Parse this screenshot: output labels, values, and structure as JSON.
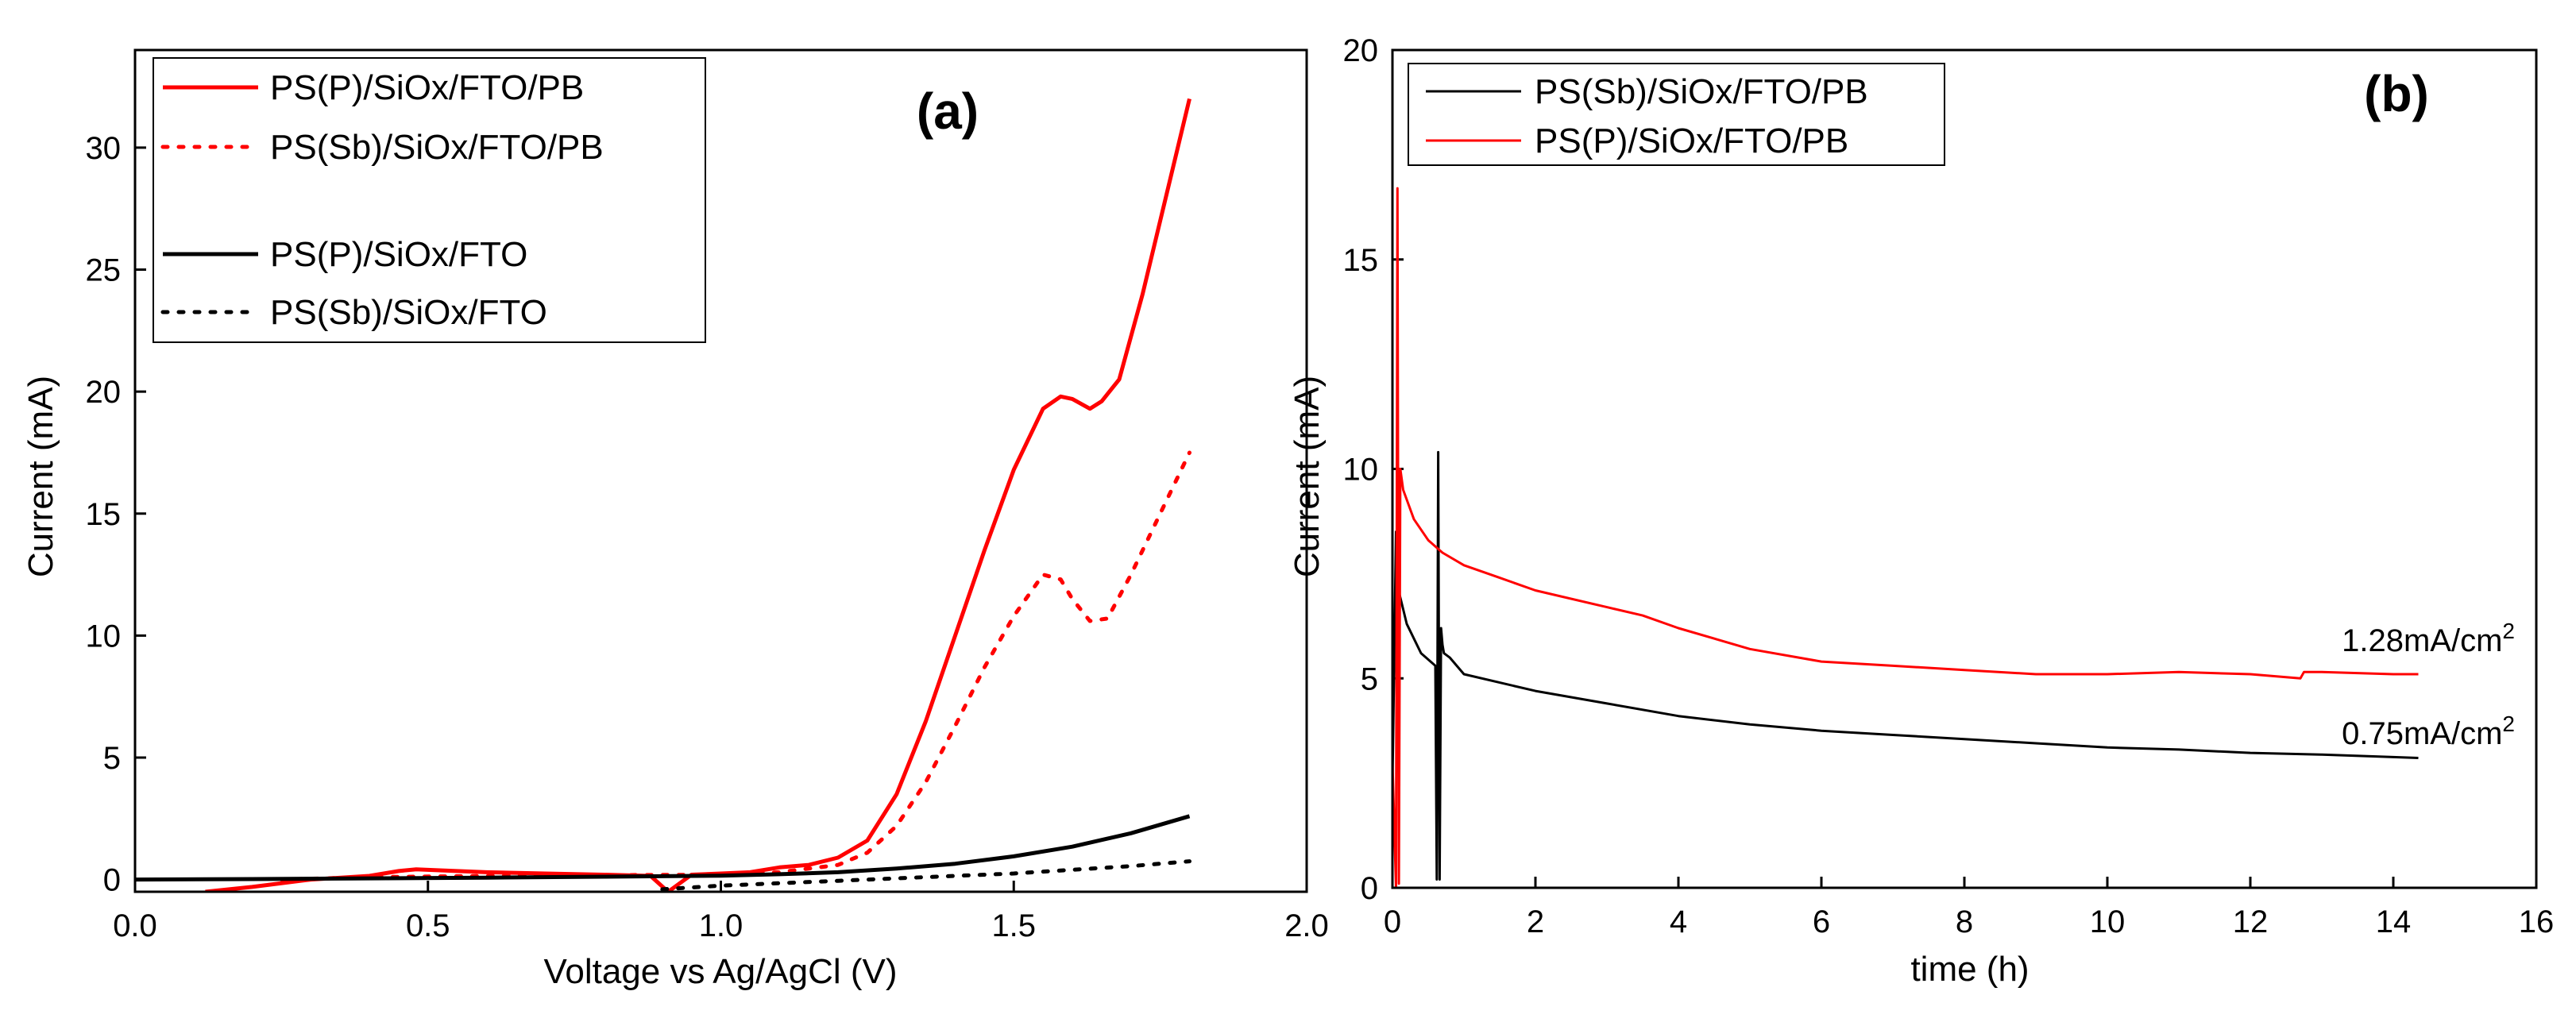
{
  "chart_data": [
    {
      "panel": "(a)",
      "type": "line",
      "title": "",
      "xlabel": "Voltage vs Ag/AgCl (V)",
      "ylabel": "Current (mA)",
      "xlim": [
        0.0,
        2.0
      ],
      "ylim": [
        -0.5,
        34
      ],
      "xticks": [
        0.0,
        0.5,
        1.0,
        1.5,
        2.0
      ],
      "xtick_labels": [
        "0.0",
        "0.5",
        "1.0",
        "1.5",
        "2.0"
      ],
      "yticks": [
        0,
        5,
        10,
        15,
        20,
        25,
        30
      ],
      "ytick_labels": [
        "0",
        "5",
        "10",
        "15",
        "20",
        "25",
        "30"
      ],
      "legend_position": "top-left",
      "series": [
        {
          "name": "PS(P)/SiOx/FTO/PB",
          "color": "#ff0000",
          "dash": "solid",
          "x": [
            0.12,
            0.2,
            0.3,
            0.4,
            0.45,
            0.48,
            0.52,
            0.6,
            0.7,
            0.8,
            0.88,
            0.91,
            0.95,
            1.0,
            1.05,
            1.1,
            1.15,
            1.2,
            1.25,
            1.3,
            1.35,
            1.4,
            1.45,
            1.5,
            1.55,
            1.58,
            1.6,
            1.63,
            1.65,
            1.68,
            1.72,
            1.75,
            1.8
          ],
          "y": [
            -0.5,
            -0.3,
            0.0,
            0.15,
            0.35,
            0.42,
            0.38,
            0.3,
            0.25,
            0.2,
            0.15,
            -0.5,
            0.2,
            0.25,
            0.3,
            0.5,
            0.6,
            0.9,
            1.6,
            3.5,
            6.5,
            10.0,
            13.5,
            16.8,
            19.3,
            19.8,
            19.7,
            19.3,
            19.6,
            20.5,
            24.0,
            27.0,
            32.0
          ]
        },
        {
          "name": "PS(Sb)/SiOx/FTO/PB",
          "color": "#ff0000",
          "dash": "dotted",
          "x": [
            0.25,
            0.4,
            0.6,
            0.8,
            1.0,
            1.1,
            1.2,
            1.25,
            1.3,
            1.35,
            1.4,
            1.45,
            1.5,
            1.55,
            1.58,
            1.6,
            1.63,
            1.66,
            1.7,
            1.75,
            1.8
          ],
          "y": [
            0.0,
            0.1,
            0.15,
            0.18,
            0.2,
            0.3,
            0.6,
            1.1,
            2.2,
            4.0,
            6.3,
            8.7,
            10.8,
            12.5,
            12.3,
            11.5,
            10.6,
            10.7,
            12.5,
            15.0,
            17.5
          ]
        },
        {
          "name": "PS(P)/SiOx/FTO",
          "color": "#000000",
          "dash": "solid",
          "x": [
            0.0,
            0.2,
            0.4,
            0.6,
            0.8,
            1.0,
            1.1,
            1.2,
            1.3,
            1.4,
            1.5,
            1.6,
            1.7,
            1.8
          ],
          "y": [
            0.0,
            0.02,
            0.05,
            0.08,
            0.12,
            0.16,
            0.22,
            0.3,
            0.45,
            0.65,
            0.95,
            1.35,
            1.9,
            2.6
          ]
        },
        {
          "name": "PS(Sb)/SiOx/FTO",
          "color": "#000000",
          "dash": "dotted",
          "x": [
            0.9,
            1.0,
            1.1,
            1.2,
            1.3,
            1.4,
            1.5,
            1.6,
            1.7,
            1.8
          ],
          "y": [
            -0.4,
            -0.25,
            -0.15,
            -0.05,
            0.05,
            0.15,
            0.25,
            0.4,
            0.55,
            0.75
          ]
        }
      ]
    },
    {
      "panel": "(b)",
      "type": "line",
      "title": "",
      "xlabel": "time (h)",
      "ylabel": "Current (mA)",
      "xlim": [
        0,
        16
      ],
      "ylim": [
        0,
        20
      ],
      "xticks": [
        0,
        2,
        4,
        6,
        8,
        10,
        12,
        14,
        16
      ],
      "xtick_labels": [
        "0",
        "2",
        "4",
        "6",
        "8",
        "10",
        "12",
        "14",
        "16"
      ],
      "yticks": [
        0,
        5,
        10,
        15,
        20
      ],
      "ytick_labels": [
        "0",
        "5",
        "10",
        "15",
        "20"
      ],
      "legend_position": "top-left",
      "series": [
        {
          "name": "PS(Sb)/SiOx/FTO/PB",
          "color": "#000000",
          "dash": "solid",
          "x": [
            0.0,
            0.05,
            0.1,
            0.2,
            0.4,
            0.6,
            0.62,
            0.64,
            0.66,
            0.68,
            0.7,
            0.72,
            0.8,
            1,
            2,
            3,
            4,
            5,
            6,
            7,
            8,
            9,
            10,
            11,
            12,
            13,
            14,
            14.35
          ],
          "y": [
            2.5,
            8.5,
            7.0,
            6.3,
            5.6,
            5.3,
            0.2,
            10.4,
            0.2,
            6.2,
            5.8,
            5.6,
            5.5,
            5.1,
            4.7,
            4.4,
            4.1,
            3.9,
            3.75,
            3.65,
            3.55,
            3.45,
            3.35,
            3.3,
            3.22,
            3.18,
            3.12,
            3.1
          ]
        },
        {
          "name": "PS(P)/SiOx/FTO/PB",
          "color": "#ff0000",
          "dash": "solid",
          "x": [
            0.0,
            0.05,
            0.07,
            0.09,
            0.11,
            0.15,
            0.3,
            0.5,
            0.7,
            1,
            1.5,
            2,
            3,
            3.5,
            4,
            5,
            6,
            7,
            8,
            9,
            10,
            11,
            12,
            12.7,
            12.75,
            13,
            14,
            14.35
          ],
          "y": [
            3.0,
            0.0,
            16.7,
            0.1,
            10.0,
            9.5,
            8.8,
            8.3,
            8.0,
            7.7,
            7.4,
            7.1,
            6.7,
            6.5,
            6.2,
            5.7,
            5.4,
            5.3,
            5.2,
            5.1,
            5.1,
            5.15,
            5.1,
            5.0,
            5.15,
            5.15,
            5.1,
            5.1
          ]
        }
      ],
      "annotations": [
        {
          "text": "1.28mA/cm",
          "sup": "2",
          "series": "PS(P)/SiOx/FTO/PB"
        },
        {
          "text": "0.75mA/cm",
          "sup": "2",
          "series": "PS(Sb)/SiOx/FTO/PB"
        }
      ]
    }
  ]
}
